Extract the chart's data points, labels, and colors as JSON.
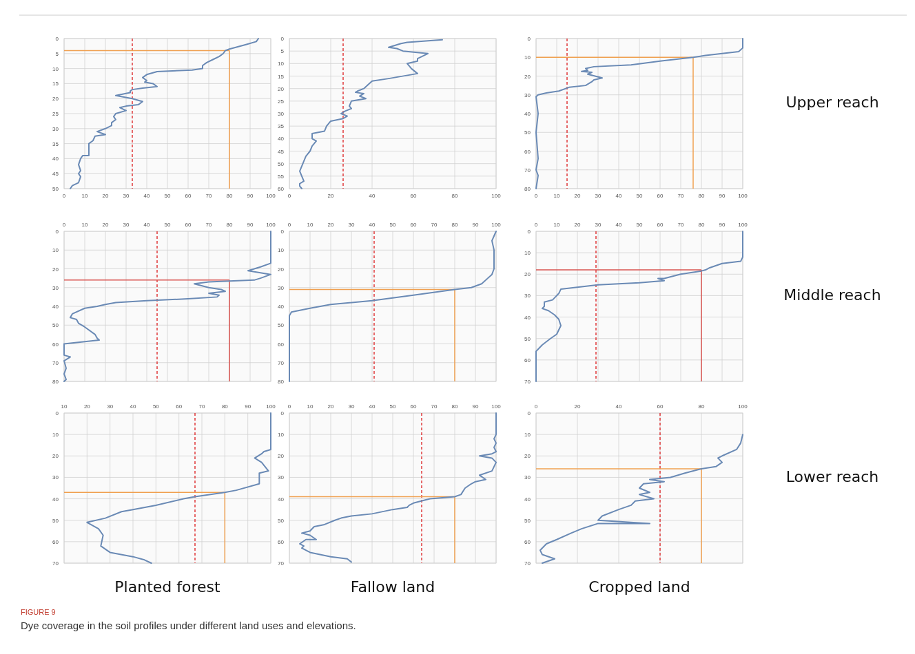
{
  "chart_data": [
    {
      "type": "line",
      "xlim": [
        0,
        100
      ],
      "xticks": [
        0,
        10,
        20,
        30,
        40,
        50,
        60,
        70,
        80,
        90,
        100
      ],
      "ylim": [
        50,
        0
      ],
      "yticks": [
        0,
        5,
        10,
        15,
        20,
        25,
        30,
        35,
        40,
        45,
        50
      ],
      "grid": true,
      "series": [
        {
          "color": "#6a8ab5",
          "x": [
            94,
            93,
            88,
            80,
            78,
            77,
            75,
            72,
            69,
            67,
            67,
            62,
            45,
            40,
            38,
            40,
            39,
            43,
            45,
            38,
            33,
            32,
            32,
            25,
            33,
            38,
            36,
            30,
            27,
            30,
            25,
            24,
            25,
            23,
            23,
            20,
            16,
            20,
            15,
            14,
            12,
            12,
            12,
            9,
            8,
            7,
            8,
            7,
            8,
            7,
            4,
            3
          ],
          "values": [
            0,
            1,
            2,
            3.5,
            4,
            5,
            6,
            7,
            8,
            9,
            10,
            10.5,
            11,
            12,
            13,
            14,
            14.5,
            15,
            16,
            16.5,
            17,
            17.5,
            18,
            19,
            20,
            21,
            22,
            22.5,
            23,
            24,
            25,
            26,
            27,
            28,
            29,
            30,
            31,
            32,
            32.5,
            34,
            35,
            37,
            39,
            39,
            40,
            42,
            44,
            45,
            46,
            48,
            49,
            50
          ]
        }
      ],
      "ref_lines": [
        {
          "axis": "x",
          "value": 33,
          "color": "#e0383a",
          "line_style": "dashed"
        },
        {
          "axis": "y",
          "value": 4,
          "color": "#f0a050",
          "line_style": "solid"
        },
        {
          "axis": "x",
          "value": 80,
          "color": "#f0a050",
          "line_style": "solid"
        }
      ]
    },
    {
      "type": "line",
      "xlim": [
        0,
        100
      ],
      "xticks": [
        0,
        20,
        40,
        60,
        80,
        100
      ],
      "ylim": [
        60,
        0
      ],
      "yticks": [
        0,
        5,
        10,
        15,
        20,
        25,
        30,
        35,
        40,
        45,
        50,
        55,
        60
      ],
      "grid": true,
      "series": [
        {
          "color": "#6a8ab5",
          "x": [
            74,
            57,
            54,
            48,
            52,
            55,
            67,
            62,
            62,
            57,
            58,
            59,
            62,
            48,
            40,
            36,
            33,
            32,
            36,
            34,
            37,
            30,
            29,
            30,
            27,
            25,
            28,
            26,
            20,
            18,
            17,
            11,
            11,
            13,
            11,
            10,
            8,
            7,
            6,
            5,
            6,
            7,
            5,
            5,
            6
          ],
          "values": [
            0.5,
            1.5,
            2,
            3.5,
            4,
            5,
            6,
            8,
            9,
            10,
            11,
            12,
            14,
            16,
            17,
            20,
            21,
            21.5,
            22,
            23,
            24,
            25,
            27,
            28,
            29,
            30,
            31,
            32,
            33,
            35,
            37,
            38,
            40,
            41,
            43,
            45,
            47,
            49,
            51,
            53,
            55,
            57,
            58,
            59,
            60
          ]
        }
      ],
      "ref_lines": [
        {
          "axis": "x",
          "value": 26,
          "color": "#e0383a",
          "line_style": "dashed"
        }
      ]
    },
    {
      "type": "line",
      "xlim": [
        0,
        100
      ],
      "xticks": [
        0,
        10,
        20,
        30,
        40,
        50,
        60,
        70,
        80,
        90,
        100
      ],
      "ylim": [
        80,
        0
      ],
      "yticks": [
        0,
        10,
        20,
        30,
        40,
        50,
        60,
        70,
        80
      ],
      "grid": true,
      "series": [
        {
          "color": "#6a8ab5",
          "x": [
            100,
            100,
            98,
            90,
            82,
            76,
            68,
            60,
            46,
            28,
            24,
            25,
            22,
            27,
            25,
            32,
            28,
            27,
            24,
            16,
            11,
            5,
            1,
            0,
            1,
            0,
            1,
            0,
            1,
            0
          ],
          "values": [
            0,
            5,
            7,
            8,
            9,
            10,
            11,
            12,
            14,
            15,
            16,
            17,
            17.5,
            18,
            19,
            21,
            22,
            23,
            25,
            26,
            28,
            29,
            30,
            31,
            40,
            50,
            64,
            70,
            73,
            80
          ]
        }
      ],
      "ref_lines": [
        {
          "axis": "x",
          "value": 15,
          "color": "#e0383a",
          "line_style": "dashed"
        },
        {
          "axis": "y",
          "value": 10,
          "color": "#f0a050",
          "line_style": "solid"
        },
        {
          "axis": "x",
          "value": 76,
          "color": "#f0a050",
          "line_style": "solid"
        }
      ],
      "annotations": [
        "Upper reach"
      ]
    },
    {
      "type": "line",
      "xlim": [
        0,
        100
      ],
      "xticks": [
        0,
        10,
        20,
        30,
        40,
        50,
        60,
        70,
        80,
        90,
        100
      ],
      "ylim": [
        80,
        0
      ],
      "yticks": [
        0,
        10,
        20,
        30,
        40,
        50,
        60,
        70,
        80
      ],
      "grid": true,
      "series": [
        {
          "color": "#6a8ab5",
          "x": [
            100,
            100,
            100,
            95,
            89,
            100,
            95,
            92,
            70,
            63,
            70,
            76,
            78,
            70,
            75,
            74,
            60,
            40,
            25,
            20,
            16,
            10,
            4,
            3,
            6,
            7,
            10,
            15,
            16,
            17,
            0,
            0,
            3,
            0,
            1,
            0,
            1,
            0
          ],
          "values": [
            0,
            10,
            17,
            19,
            21,
            23,
            25,
            26,
            27,
            28,
            30,
            31,
            32,
            33,
            34,
            35,
            36,
            37,
            38,
            39,
            40,
            41,
            44,
            46,
            47,
            49,
            51,
            55,
            57,
            58,
            60,
            66,
            67,
            69,
            73,
            76,
            79,
            80
          ]
        }
      ],
      "ref_lines": [
        {
          "axis": "x",
          "value": 45,
          "color": "#e0383a",
          "line_style": "dashed"
        },
        {
          "axis": "y",
          "value": 26,
          "color": "#d9534f",
          "line_style": "solid"
        },
        {
          "axis": "x",
          "value": 80,
          "color": "#d9534f",
          "line_style": "solid"
        }
      ]
    },
    {
      "type": "line",
      "xlim": [
        0,
        100
      ],
      "xticks": [
        0,
        10,
        20,
        30,
        40,
        50,
        60,
        70,
        80,
        90,
        100
      ],
      "ylim": [
        80,
        0
      ],
      "yticks": [
        0,
        10,
        20,
        30,
        40,
        50,
        60,
        70,
        80
      ],
      "grid": true,
      "series": [
        {
          "color": "#6a8ab5",
          "x": [
            100,
            98,
            99,
            99,
            98,
            96,
            93,
            88,
            80,
            60,
            40,
            20,
            10,
            1,
            0,
            0,
            0,
            0
          ],
          "values": [
            0,
            5,
            10,
            20,
            23,
            25,
            28,
            30,
            31,
            34,
            37,
            39,
            41,
            43,
            45,
            60,
            70,
            80
          ]
        }
      ],
      "ref_lines": [
        {
          "axis": "x",
          "value": 41,
          "color": "#e0383a",
          "line_style": "dashed"
        },
        {
          "axis": "y",
          "value": 31,
          "color": "#f0a050",
          "line_style": "solid"
        },
        {
          "axis": "x",
          "value": 80,
          "color": "#f0a050",
          "line_style": "solid"
        }
      ]
    },
    {
      "type": "line",
      "xlim": [
        0,
        100
      ],
      "xticks": [
        0,
        10,
        20,
        30,
        40,
        50,
        60,
        70,
        80,
        90,
        100
      ],
      "ylim": [
        70,
        0
      ],
      "yticks": [
        0,
        10,
        20,
        30,
        40,
        50,
        60,
        70
      ],
      "grid": true,
      "series": [
        {
          "color": "#6a8ab5",
          "x": [
            100,
            100,
            99,
            90,
            84,
            82,
            80,
            70,
            62,
            59,
            62,
            50,
            30,
            12,
            11,
            8,
            4,
            4,
            3,
            6,
            9,
            11,
            12,
            10,
            7,
            3,
            0,
            0
          ],
          "values": [
            0,
            12,
            14,
            15,
            17,
            18,
            18.5,
            20,
            22,
            22,
            23,
            24,
            25,
            27,
            29,
            32,
            33,
            35,
            36,
            37,
            39,
            41,
            44,
            48,
            50,
            53,
            56,
            70
          ]
        }
      ],
      "ref_lines": [
        {
          "axis": "x",
          "value": 29,
          "color": "#e0383a",
          "line_style": "dashed"
        },
        {
          "axis": "y",
          "value": 18,
          "color": "#d9534f",
          "line_style": "solid"
        },
        {
          "axis": "x",
          "value": 80,
          "color": "#d9534f",
          "line_style": "solid"
        }
      ],
      "annotations": [
        "Middle reach"
      ]
    },
    {
      "type": "line",
      "xlim": [
        10,
        100
      ],
      "xticks": [
        10,
        20,
        30,
        40,
        50,
        60,
        70,
        80,
        90,
        100
      ],
      "ylim": [
        70,
        0
      ],
      "yticks": [
        0,
        10,
        20,
        30,
        40,
        50,
        60,
        70
      ],
      "grid": true,
      "xlabel": "Planted forest",
      "series": [
        {
          "color": "#6a8ab5",
          "x": [
            100,
            100,
            97,
            96,
            93,
            96,
            99,
            95,
            95,
            85,
            80,
            67,
            62,
            50,
            40,
            35,
            28,
            20,
            25,
            27,
            26,
            30,
            40,
            45,
            48
          ],
          "values": [
            0,
            17,
            18,
            19,
            21,
            23,
            27,
            28,
            33,
            36,
            37,
            39,
            40,
            43,
            45,
            46,
            49,
            51,
            54,
            57,
            62,
            65,
            67,
            68.5,
            70
          ]
        }
      ],
      "ref_lines": [
        {
          "axis": "x",
          "value": 67,
          "color": "#e0383a",
          "line_style": "dashed"
        },
        {
          "axis": "y",
          "value": 37,
          "color": "#f0a050",
          "line_style": "solid"
        },
        {
          "axis": "x",
          "value": 80,
          "color": "#f0a050",
          "line_style": "solid"
        }
      ]
    },
    {
      "type": "line",
      "xlim": [
        0,
        100
      ],
      "xticks": [
        0,
        10,
        20,
        30,
        40,
        50,
        60,
        70,
        80,
        90,
        100
      ],
      "ylim": [
        70,
        0
      ],
      "yticks": [
        0,
        10,
        20,
        30,
        40,
        50,
        60,
        70
      ],
      "grid": true,
      "xlabel": "Fallow land",
      "series": [
        {
          "color": "#6a8ab5",
          "x": [
            100,
            100,
            99,
            100,
            99,
            100,
            98,
            92,
            98,
            100,
            99,
            98,
            92,
            95,
            90,
            88,
            85,
            83,
            80,
            68,
            60,
            58,
            57,
            50,
            40,
            30,
            25,
            22,
            17,
            12,
            10,
            6,
            10,
            13,
            8,
            5,
            7,
            6,
            10,
            20,
            28,
            30
          ],
          "values": [
            0,
            10,
            12,
            14,
            16,
            18,
            19,
            20,
            21,
            23,
            25,
            27,
            29,
            31,
            32,
            33,
            35,
            38,
            39,
            40,
            42,
            43,
            44,
            45,
            47,
            48,
            49,
            50,
            52,
            53,
            55,
            56,
            57,
            59,
            59,
            61,
            62,
            63,
            65,
            67,
            68,
            69.5
          ]
        }
      ],
      "ref_lines": [
        {
          "axis": "x",
          "value": 64,
          "color": "#e0383a",
          "line_style": "dashed"
        },
        {
          "axis": "y",
          "value": 39,
          "color": "#f0a050",
          "line_style": "solid"
        },
        {
          "axis": "x",
          "value": 80,
          "color": "#f0a050",
          "line_style": "solid"
        }
      ]
    },
    {
      "type": "line",
      "xlim": [
        0,
        100
      ],
      "xticks": [
        0,
        20,
        40,
        60,
        80,
        100
      ],
      "ylim": [
        70,
        0
      ],
      "yticks": [
        0,
        10,
        20,
        30,
        40,
        50,
        60,
        70
      ],
      "grid": true,
      "xlabel": "Cropped land",
      "series": [
        {
          "color": "#6a8ab5",
          "x": [
            100,
            99,
            97,
            90,
            88,
            90,
            87,
            80,
            72,
            65,
            55,
            62,
            52,
            50,
            55,
            50,
            57,
            48,
            46,
            40,
            32,
            30,
            55,
            30,
            22,
            17,
            10,
            5,
            2,
            3,
            9,
            3
          ],
          "values": [
            10,
            14,
            17,
            20,
            21,
            23,
            25,
            26,
            28,
            30,
            31,
            32,
            33,
            35,
            37,
            38,
            40,
            41,
            43,
            45,
            48,
            50,
            51.5,
            51.5,
            54,
            56,
            59,
            61,
            64,
            66,
            68,
            70
          ]
        }
      ],
      "ref_lines": [
        {
          "axis": "x",
          "value": 60,
          "color": "#e0383a",
          "line_style": "dashed"
        },
        {
          "axis": "y",
          "value": 26,
          "color": "#f0a050",
          "line_style": "solid"
        },
        {
          "axis": "x",
          "value": 80,
          "color": "#f0a050",
          "line_style": "solid"
        }
      ],
      "annotations": [
        "Lower reach"
      ]
    },
    {
      "type": "other",
      "title": "FIGURE 9",
      "subtitle": "Dye coverage in the soil profiles under different land uses and elevations."
    }
  ]
}
